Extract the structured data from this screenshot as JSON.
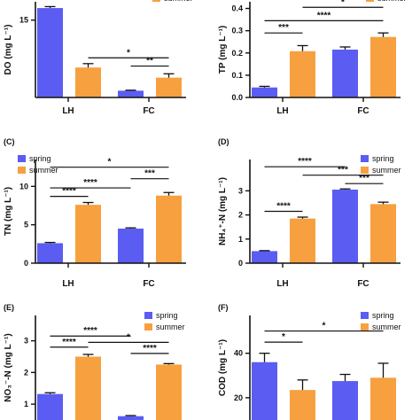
{
  "colors": {
    "spring": "#5b5cf2",
    "summer": "#f7a040",
    "axis": "#111111"
  },
  "chart_data": [
    {
      "panel": "",
      "type": "bar",
      "categories": [
        "LH",
        "FC"
      ],
      "ylabel": "DO (mg L⁻¹)",
      "yticks": [
        "15"
      ],
      "yrange": [
        -1,
        18.8
      ],
      "series": [
        {
          "name": "spring",
          "values": [
            17.5,
            0.4
          ],
          "errors": [
            0.3,
            0.1
          ]
        },
        {
          "name": "summer",
          "values": [
            5.2,
            3.1
          ],
          "errors": [
            0.8,
            0.8
          ]
        }
      ],
      "legend": [
        "summer"
      ],
      "significance": [
        {
          "from": [
            0,
            1
          ],
          "to": [
            1,
            1
          ],
          "y": 7.2,
          "label": "*"
        },
        {
          "from": [
            1,
            0
          ],
          "to": [
            1,
            1
          ],
          "y": 5.5,
          "label": "**"
        }
      ]
    },
    {
      "panel": "",
      "type": "bar",
      "categories": [
        "LH",
        "FC"
      ],
      "ylabel": "TP (mg L⁻¹)",
      "yticks": [
        "0.0",
        "0.1",
        "0.2",
        "0.3",
        "0.4"
      ],
      "yrange": [
        0,
        0.43
      ],
      "series": [
        {
          "name": "spring",
          "values": [
            0.045,
            0.215
          ],
          "errors": [
            0.005,
            0.012
          ]
        },
        {
          "name": "summer",
          "values": [
            0.208,
            0.272
          ],
          "errors": [
            0.025,
            0.018
          ]
        }
      ],
      "legend": [
        "summer"
      ],
      "significance": [
        {
          "from": [
            0,
            0
          ],
          "to": [
            0,
            1
          ],
          "y": 0.29,
          "label": "***"
        },
        {
          "from": [
            0,
            0
          ],
          "to": [
            1,
            1
          ],
          "y": 0.345,
          "label": "****"
        },
        {
          "from": [
            0,
            1
          ],
          "to": [
            1,
            1
          ],
          "y": 0.405,
          "label": "*"
        }
      ]
    },
    {
      "panel": "(C)",
      "type": "bar",
      "categories": [
        "LH",
        "FC"
      ],
      "ylabel": "TN (mg L⁻¹)",
      "yticks": [
        "0",
        "5",
        "10"
      ],
      "yrange": [
        0,
        13.5
      ],
      "series": [
        {
          "name": "spring",
          "values": [
            2.6,
            4.5
          ],
          "errors": [
            0.1,
            0.1
          ]
        },
        {
          "name": "summer",
          "values": [
            7.6,
            8.8
          ],
          "errors": [
            0.3,
            0.4
          ]
        }
      ],
      "legend": [
        "spring",
        "summer"
      ],
      "significance": [
        {
          "from": [
            0,
            0
          ],
          "to": [
            0,
            1
          ],
          "y": 8.7,
          "label": "****"
        },
        {
          "from": [
            0,
            0
          ],
          "to": [
            1,
            0
          ],
          "y": 9.8,
          "label": "****"
        },
        {
          "from": [
            1,
            0
          ],
          "to": [
            1,
            1
          ],
          "y": 11.0,
          "label": "***"
        },
        {
          "from": [
            0,
            0
          ],
          "to": [
            1,
            1
          ],
          "y": 12.5,
          "label": "*"
        }
      ]
    },
    {
      "panel": "(D)",
      "type": "bar",
      "categories": [
        "LH",
        "FC"
      ],
      "ylabel": "NH₄⁺-N (mg L⁻¹)",
      "yticks": [
        "0",
        "1",
        "2",
        "3"
      ],
      "yrange": [
        0,
        4.3
      ],
      "series": [
        {
          "name": "spring",
          "values": [
            0.5,
            3.05
          ],
          "errors": [
            0.02,
            0.03
          ]
        },
        {
          "name": "summer",
          "values": [
            1.85,
            2.45
          ],
          "errors": [
            0.06,
            0.08
          ]
        }
      ],
      "legend": [
        "spring",
        "summer"
      ],
      "significance": [
        {
          "from": [
            0,
            0
          ],
          "to": [
            0,
            1
          ],
          "y": 2.15,
          "label": "****"
        },
        {
          "from": [
            1,
            0
          ],
          "to": [
            1,
            1
          ],
          "y": 3.3,
          "label": "***"
        },
        {
          "from": [
            0,
            1
          ],
          "to": [
            1,
            1
          ],
          "y": 3.65,
          "label": "***"
        },
        {
          "from": [
            0,
            0
          ],
          "to": [
            1,
            0
          ],
          "y": 4.0,
          "label": "****"
        }
      ]
    },
    {
      "panel": "(E)",
      "type": "bar",
      "categories": [
        "LH",
        "FC"
      ],
      "ylabel": "NO₃⁻-N (mg L⁻¹)",
      "yticks": [
        "1",
        "2",
        "3"
      ],
      "yrange": [
        0.5,
        3.8
      ],
      "series": [
        {
          "name": "spring",
          "values": [
            1.32,
            0.62
          ],
          "errors": [
            0.04,
            0.02
          ]
        },
        {
          "name": "summer",
          "values": [
            2.5,
            2.25
          ],
          "errors": [
            0.07,
            0.03
          ]
        }
      ],
      "legend": [
        "spring",
        "summer"
      ],
      "significance": [
        {
          "from": [
            0,
            0
          ],
          "to": [
            0,
            1
          ],
          "y": 2.8,
          "label": "****"
        },
        {
          "from": [
            0,
            1
          ],
          "to": [
            1,
            1
          ],
          "y": 2.95,
          "label": "*"
        },
        {
          "from": [
            0,
            0
          ],
          "to": [
            1,
            0
          ],
          "y": 3.15,
          "label": "****"
        },
        {
          "from": [
            1,
            0
          ],
          "to": [
            1,
            1
          ],
          "y": 2.6,
          "label": "****"
        }
      ]
    },
    {
      "panel": "(F)",
      "type": "bar",
      "categories": [
        "LH",
        "FC"
      ],
      "ylabel": "COD (mg L⁻¹)",
      "yticks": [
        "20",
        "40"
      ],
      "yrange": [
        10,
        57
      ],
      "series": [
        {
          "name": "spring",
          "values": [
            36,
            27.5
          ],
          "errors": [
            4,
            3
          ]
        },
        {
          "name": "summer",
          "values": [
            23.5,
            29
          ],
          "errors": [
            4.5,
            6.5
          ]
        }
      ],
      "legend": [
        "spring",
        "summer"
      ],
      "significance": [
        {
          "from": [
            0,
            0
          ],
          "to": [
            0,
            1
          ],
          "y": 45,
          "label": "*"
        },
        {
          "from": [
            0,
            0
          ],
          "to": [
            1,
            1
          ],
          "y": 50,
          "label": "*"
        }
      ]
    }
  ]
}
